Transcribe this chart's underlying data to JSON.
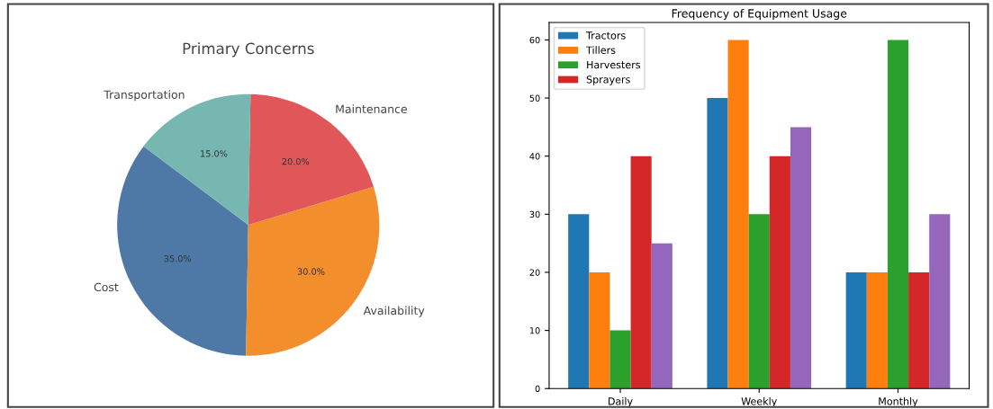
{
  "chart_data": [
    {
      "type": "pie",
      "title": "Primary Concerns",
      "categories": [
        "Cost",
        "Availability",
        "Maintenance",
        "Transportation"
      ],
      "values": [
        35,
        30,
        20,
        15
      ],
      "colors": [
        "#4e79a7",
        "#f28e2b",
        "#e15759",
        "#76b7b2"
      ],
      "value_labels": [
        "35.0%",
        "30.0%",
        "20.0%",
        "15.0%"
      ]
    },
    {
      "type": "bar",
      "title": "Frequency of Equipment Usage",
      "categories": [
        "Daily",
        "Weekly",
        "Monthly"
      ],
      "series": [
        {
          "name": "Tractors",
          "color": "#1f77b4",
          "values": [
            30,
            50,
            20
          ]
        },
        {
          "name": "Tillers",
          "color": "#ff7f0e",
          "values": [
            20,
            60,
            20
          ]
        },
        {
          "name": "Harvesters",
          "color": "#2ca02c",
          "values": [
            10,
            30,
            60
          ]
        },
        {
          "name": "Sprayers",
          "color": "#d62728",
          "values": [
            40,
            40,
            20
          ]
        },
        {
          "color": "#9467bd",
          "values": [
            25,
            45,
            30
          ]
        }
      ],
      "ylim": [
        0,
        63
      ],
      "yticks": [
        0,
        10,
        20,
        30,
        40,
        50,
        60
      ],
      "legend": "top left"
    }
  ]
}
